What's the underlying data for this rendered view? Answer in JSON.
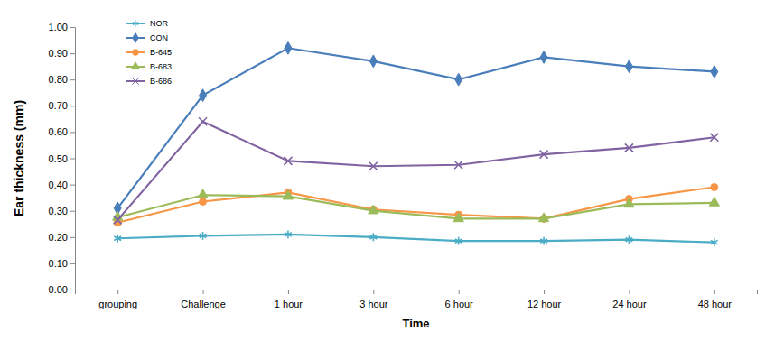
{
  "chart_data": {
    "type": "line",
    "x_label": "Time",
    "y_label": "Ear thickness (mm)",
    "categories": [
      "grouping",
      "Challenge",
      "1 hour",
      "3 hour",
      "6 hour",
      "12 hour",
      "24 hour",
      "48 hour"
    ],
    "series": [
      {
        "name": "NOR",
        "color": "#4bacc6",
        "marker": "star",
        "values": [
          0.195,
          0.205,
          0.21,
          0.2,
          0.185,
          0.185,
          0.19,
          0.18
        ]
      },
      {
        "name": "CON",
        "color": "#4a7ebb",
        "marker": "diamond",
        "values": [
          0.31,
          0.74,
          0.92,
          0.87,
          0.8,
          0.885,
          0.85,
          0.83
        ]
      },
      {
        "name": "B-645",
        "color": "#f79646",
        "marker": "circle",
        "values": [
          0.255,
          0.335,
          0.37,
          0.305,
          0.285,
          0.27,
          0.345,
          0.39
        ]
      },
      {
        "name": "B-683",
        "color": "#9bbb59",
        "marker": "triangle",
        "values": [
          0.275,
          0.36,
          0.355,
          0.3,
          0.27,
          0.27,
          0.325,
          0.33
        ]
      },
      {
        "name": "B-686",
        "color": "#8064a2",
        "marker": "x",
        "values": [
          0.265,
          0.64,
          0.49,
          0.47,
          0.475,
          0.515,
          0.54,
          0.58
        ]
      }
    ],
    "ylim": [
      0,
      1
    ],
    "yticks": [
      {
        "value": 0,
        "label": "0.00"
      },
      {
        "value": 0.1,
        "label": "0.10"
      },
      {
        "value": 0.2,
        "label": "0.20"
      },
      {
        "value": 0.3,
        "label": "0.30"
      },
      {
        "value": 0.4,
        "label": "0.40"
      },
      {
        "value": 0.5,
        "label": "0.50"
      },
      {
        "value": 0.6,
        "label": "0.60"
      },
      {
        "value": 0.7,
        "label": "0.70"
      },
      {
        "value": 0.8,
        "label": "0.80"
      },
      {
        "value": 0.9,
        "label": "0.90"
      },
      {
        "value": 1,
        "label": "1.00"
      }
    ],
    "grid": false,
    "legend": "top-left"
  }
}
